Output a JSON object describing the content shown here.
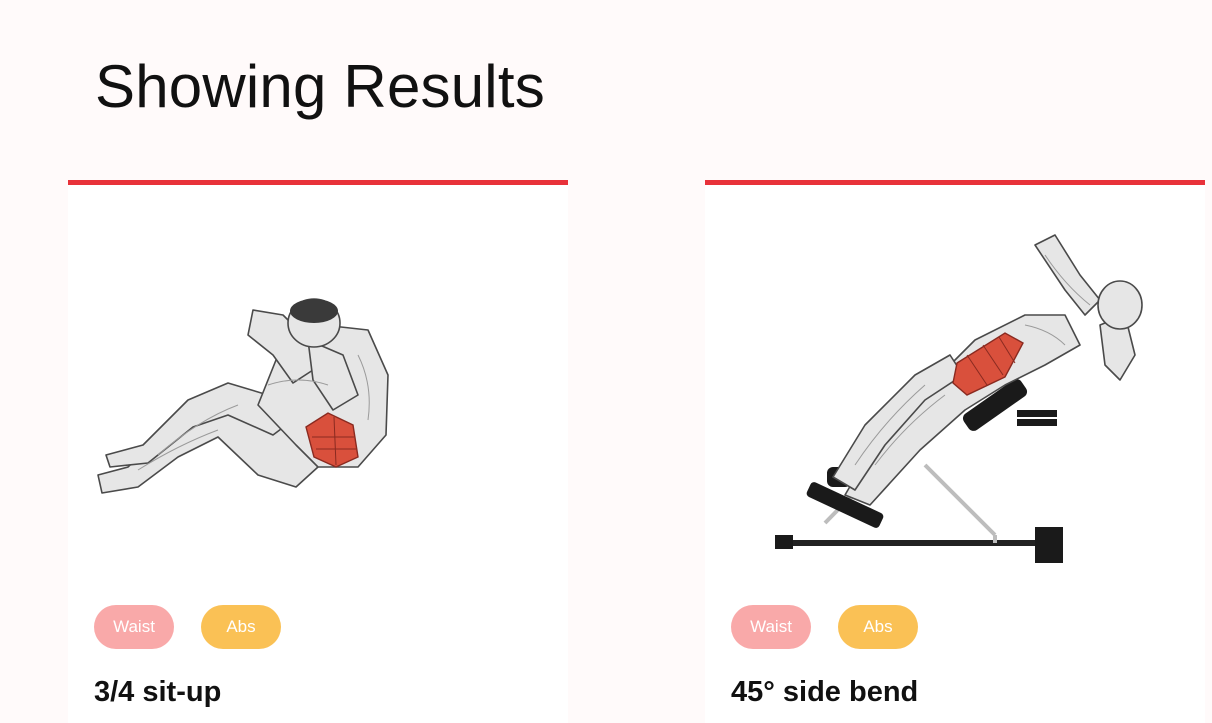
{
  "page": {
    "heading": "Showing Results"
  },
  "colors": {
    "accent": "#e8323a",
    "waist_tag": "#f9a9a9",
    "abs_tag": "#fac155",
    "muscle_highlight": "#d9503c"
  },
  "exercises": [
    {
      "title": "3/4 sit-up",
      "image_icon": "sit-up-illustration",
      "tags": [
        "Waist",
        "Abs"
      ]
    },
    {
      "title": "45° side bend",
      "image_icon": "side-bend-bench-illustration",
      "tags": [
        "Waist",
        "Abs"
      ]
    }
  ]
}
